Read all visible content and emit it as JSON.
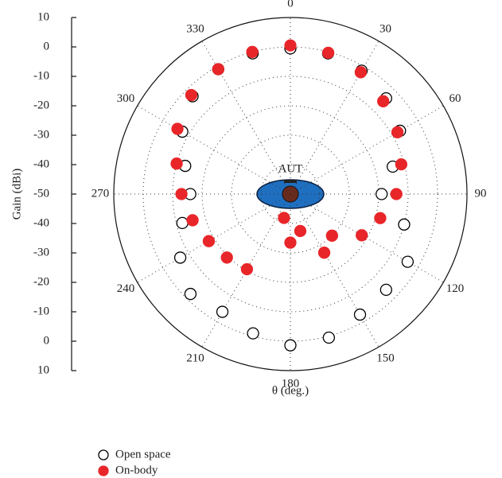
{
  "chart_data": {
    "type": "polar_scatter",
    "y_label": "Gain (dBi)",
    "x_label": "θ (deg.)",
    "annotation": "AUT",
    "theta": [
      0,
      15,
      30,
      45,
      60,
      75,
      90,
      105,
      120,
      135,
      150,
      165,
      180,
      195,
      210,
      225,
      240,
      255,
      270,
      285,
      300,
      315,
      330,
      345
    ],
    "rlim": [
      -50,
      10
    ],
    "rgrid": [
      -40,
      -30,
      -20,
      -10,
      0
    ],
    "angle_ticks": [
      0,
      30,
      60,
      90,
      120,
      150,
      180,
      210,
      240,
      270,
      300,
      330
    ],
    "gain_axis_ticks": [
      10,
      0,
      -10,
      -20,
      -30,
      -40,
      -50,
      -40,
      -30,
      -20,
      -10,
      0,
      10
    ],
    "series": [
      {
        "name": "Open space",
        "marker": "open",
        "color": "#000000",
        "values": [
          -0.5,
          -0.5,
          -1.6,
          -4,
          -7,
          -14,
          -19,
          -10,
          -4,
          -4,
          -2.7,
          0.5,
          1.4,
          -1,
          -3.8,
          -2,
          -6.8,
          -12,
          -16,
          -13,
          -7.6,
          -3,
          -1,
          -0.5
        ]
      },
      {
        "name": "On-body",
        "marker": "filled",
        "color": "#e8262a",
        "values": [
          0.5,
          -0.3,
          -2.2,
          -5.4,
          -8,
          -11,
          -14,
          -18.4,
          -22,
          -30,
          -27,
          -37,
          -33.5,
          -41.6,
          -20.5,
          -19.5,
          -18,
          -15.6,
          -13,
          -10,
          -5.7,
          -2.4,
          -1,
          0
        ]
      }
    ]
  }
}
